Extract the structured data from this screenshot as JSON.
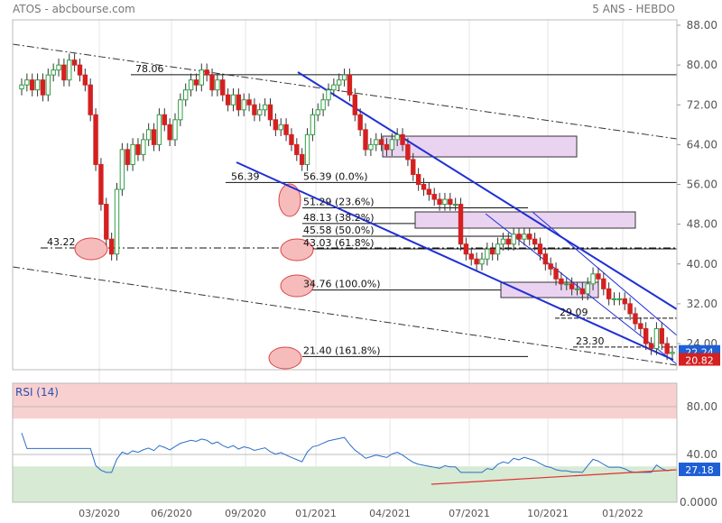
{
  "header": {
    "title": "ATOS - abcbourse.com",
    "period": "5 ANS - HEBDO"
  },
  "colors": {
    "up": "#2f9e44",
    "down": "#d42020",
    "channel": "#1f2fd6",
    "rsi_line": "#2a6fc9",
    "rsi_upper_zone": "#f9d0d0",
    "rsi_lower_zone": "#d7ead3",
    "rsi_trend": "#e03030",
    "fib_ellipse": "#f6bcbc",
    "box": "#ead3f0",
    "last_price_bg": "#1f5fd6",
    "low_bg": "#d42020"
  },
  "chart_data": [
    {
      "type": "candlestick",
      "name": "price",
      "ylim": [
        16.5,
        89
      ],
      "y_ticks": [
        88,
        80,
        72,
        64,
        56,
        48,
        40,
        32,
        24
      ],
      "y_tick_labels": [
        "88.00",
        "80.00",
        "72.00",
        "64.00",
        "56.00",
        "48.00",
        "40.00",
        "32.00",
        "24.00"
      ],
      "x_ticks": [
        "03/2020",
        "06/2020",
        "09/2020",
        "01/2021",
        "04/2021",
        "07/2021",
        "10/2021",
        "01/2022"
      ],
      "last_price": "22.24",
      "low_price": "20.82",
      "horizontal_levels": [
        {
          "price": 78.06,
          "label": "78.06"
        },
        {
          "price": 56.39,
          "label": "56.39"
        },
        {
          "price": 56.39,
          "label": "56.39  (0.0%)"
        },
        {
          "price": 51.29,
          "label": "51.29  (23.6%)"
        },
        {
          "price": 48.13,
          "label": "48.13  (38.2%)"
        },
        {
          "price": 45.58,
          "label": "45.58  (50.0%)"
        },
        {
          "price": 43.03,
          "label": "43.03  (61.8%)"
        },
        {
          "price": 43.22,
          "label": "43.22"
        },
        {
          "price": 34.76,
          "label": "34.76  (100.0%)"
        },
        {
          "price": 29.09,
          "label": "29.09"
        },
        {
          "price": 23.3,
          "label": "23.30"
        },
        {
          "price": 21.4,
          "label": "21.40  (161.8%)"
        }
      ]
    },
    {
      "type": "line",
      "name": "RSI (14)",
      "ylim": [
        0,
        100
      ],
      "y_ticks": [
        80,
        40,
        0
      ],
      "y_tick_labels": [
        "80.00",
        "40.00",
        "0.0000"
      ],
      "last_value": "27.18"
    }
  ]
}
